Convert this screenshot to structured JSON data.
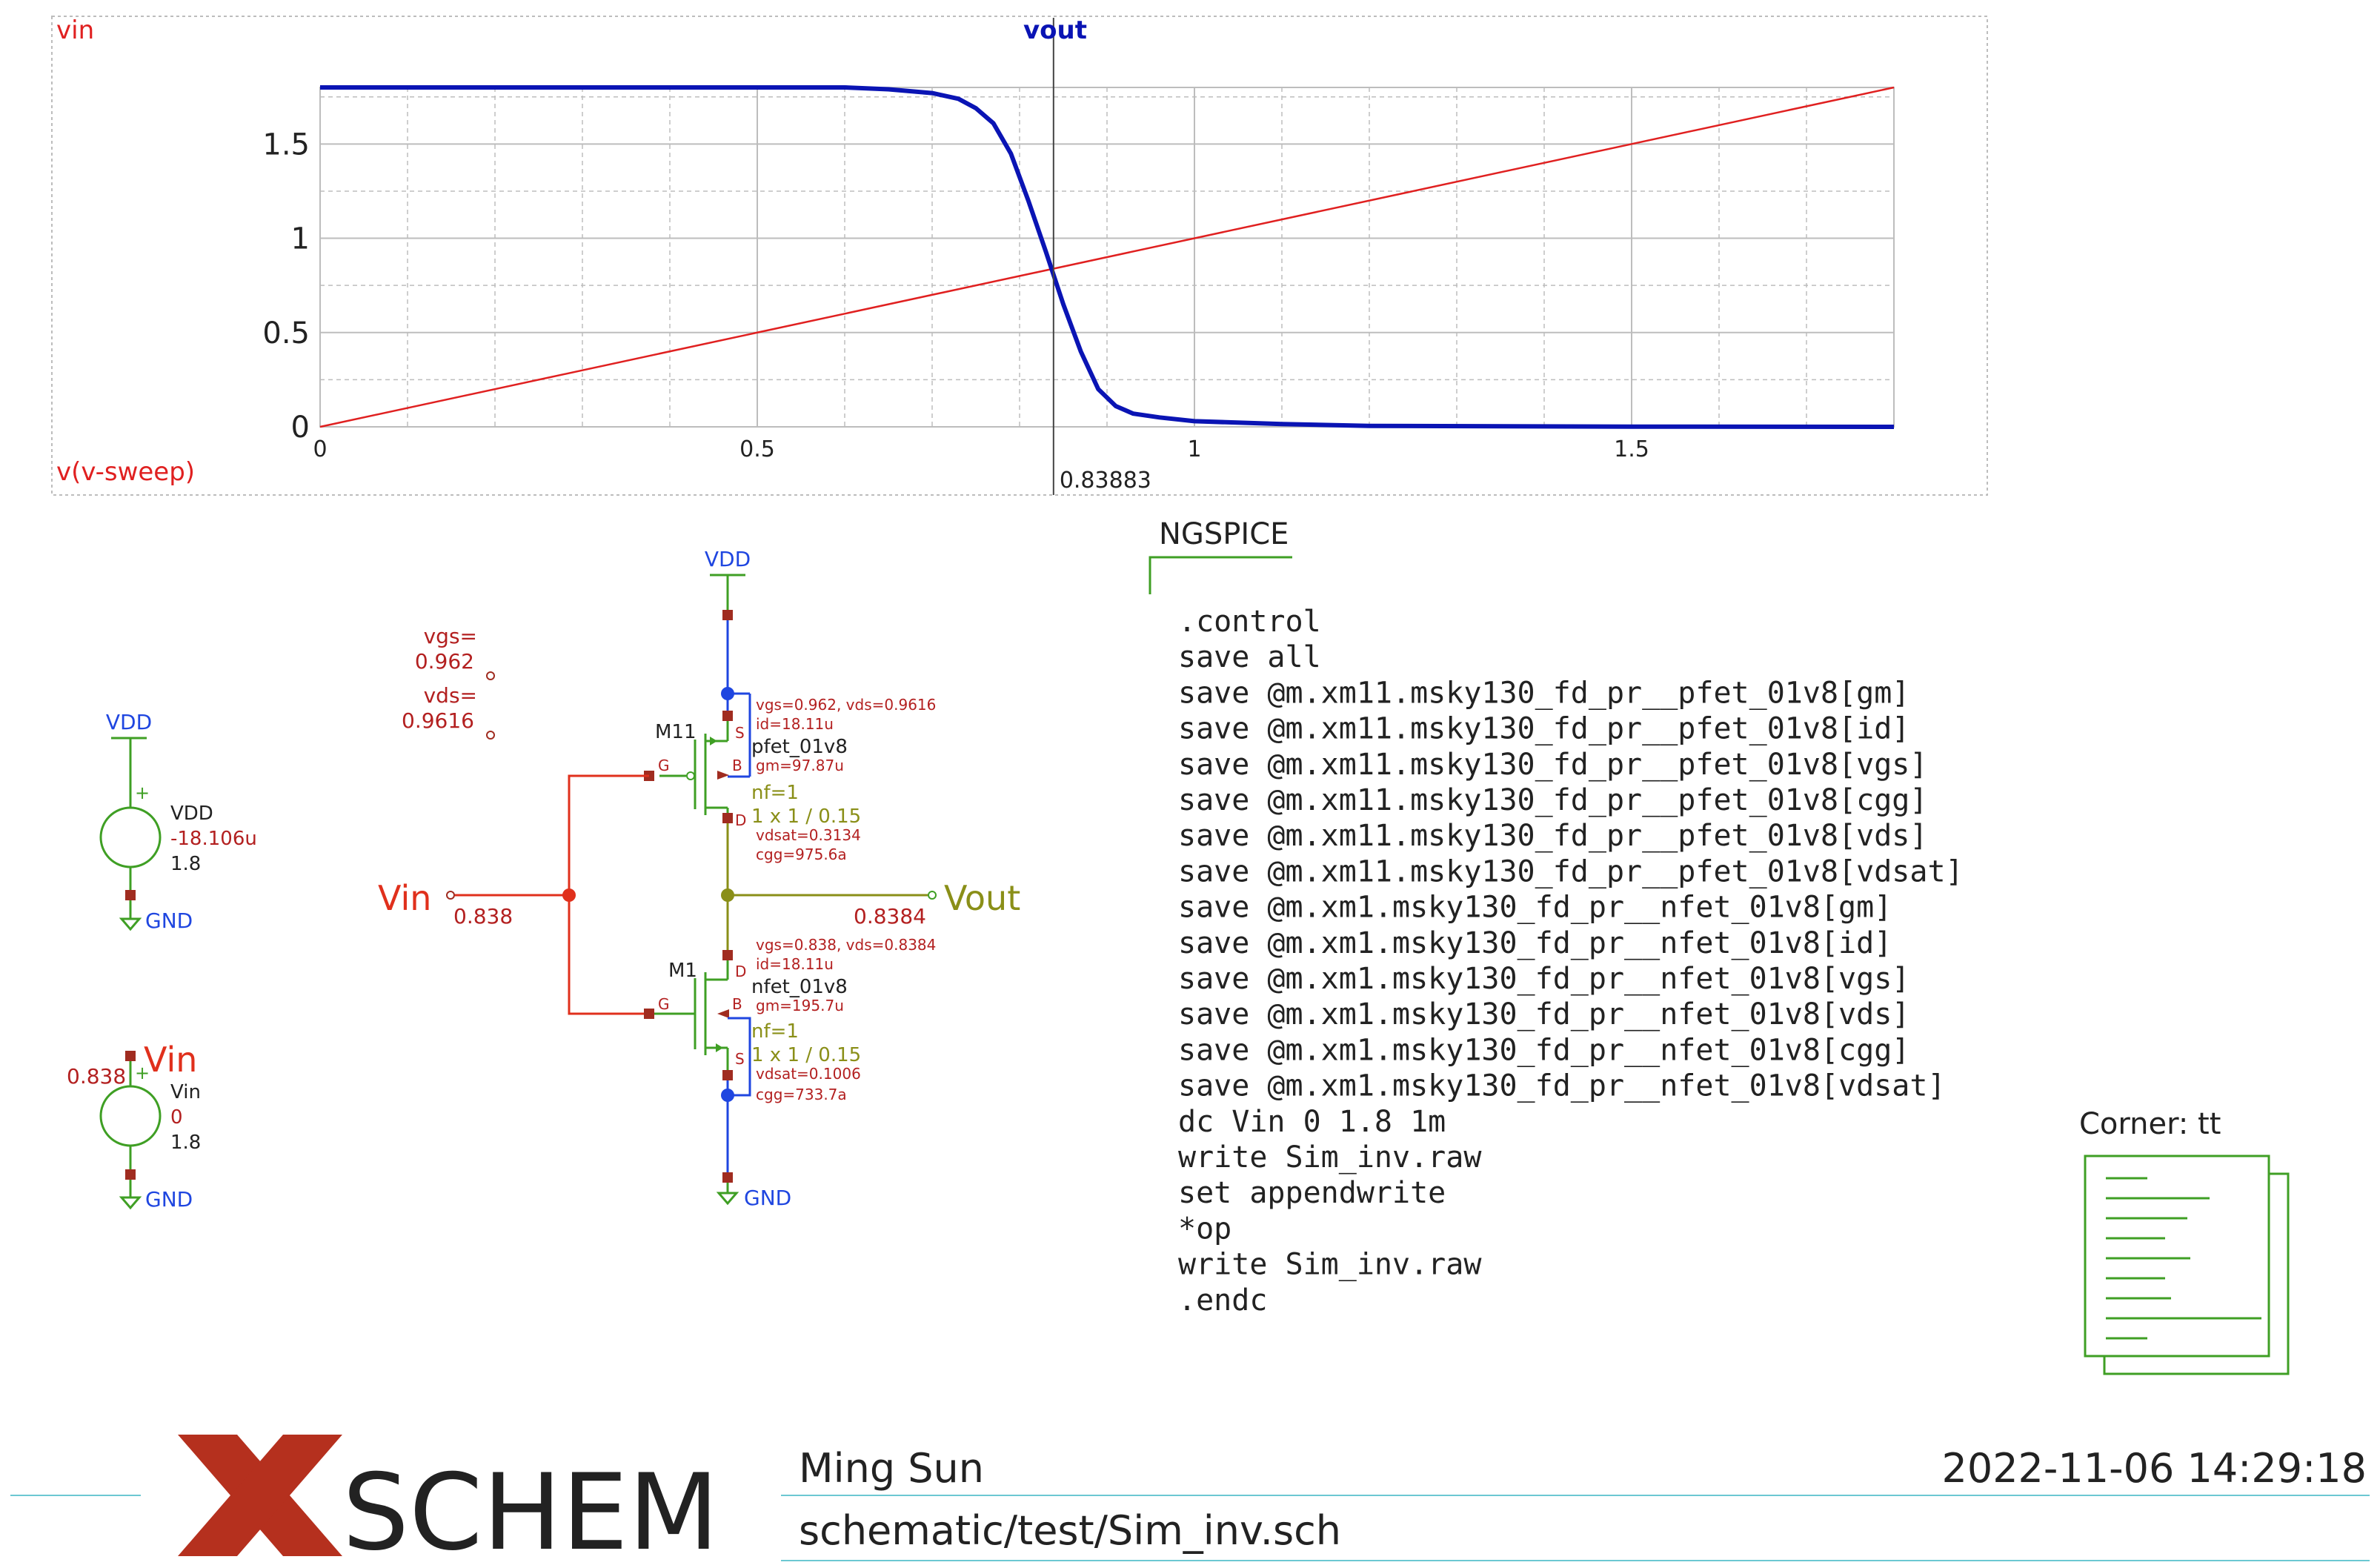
{
  "colors": {
    "background": "#ffffff",
    "grid": "#bdbdbd",
    "axis_text": "#222222",
    "vout": "#0a14b4",
    "vin_trace": "#e02020",
    "wire_green": "#3f9f24",
    "net_blue": "#1f46e0",
    "net_red": "#e0301c",
    "net_olive": "#8a8f18",
    "annot_red": "#b32020",
    "pin_dark": "#a02c20",
    "xschem_red": "#b5301e",
    "accent_line": "#6cc8d2"
  },
  "waveform": {
    "vin_label": "vin",
    "vout_label": "vout",
    "sweep_label": "v(v-sweep)",
    "cursor_value": "0.83883"
  },
  "chart_data": {
    "type": "line",
    "title": "",
    "xlabel": "v(v-sweep)",
    "ylabel": "",
    "xlim": [
      0,
      1.8
    ],
    "ylim": [
      0,
      1.8
    ],
    "xticks": [
      0,
      0.5,
      1,
      1.5
    ],
    "xtick_labels": [
      "0",
      "0.5",
      "1",
      "1.5"
    ],
    "yticks": [
      0,
      0.5,
      1,
      1.5
    ],
    "ytick_labels": [
      "0",
      "0.5",
      "1",
      "1.5"
    ],
    "grid": true,
    "cursor_x": 0.83883,
    "series": [
      {
        "name": "vin",
        "color": "#e02020",
        "x": [
          0,
          1.8
        ],
        "y": [
          0,
          1.8
        ]
      },
      {
        "name": "vout",
        "color": "#0a14b4",
        "x": [
          0,
          0.5,
          0.6,
          0.65,
          0.7,
          0.73,
          0.75,
          0.77,
          0.79,
          0.81,
          0.83,
          0.85,
          0.87,
          0.89,
          0.91,
          0.93,
          0.96,
          1.0,
          1.1,
          1.2,
          1.5,
          1.8
        ],
        "y": [
          1.8,
          1.8,
          1.8,
          1.79,
          1.77,
          1.74,
          1.69,
          1.61,
          1.45,
          1.2,
          0.93,
          0.65,
          0.4,
          0.2,
          0.11,
          0.07,
          0.05,
          0.03,
          0.015,
          0.005,
          0.001,
          0.0
        ]
      }
    ]
  },
  "schematic": {
    "vdd_net": "VDD",
    "gnd_net": "GND",
    "vin_net": "Vin",
    "vout_net": "Vout",
    "vin_value": "0.838",
    "vout_value": "0.8384",
    "probe_vgs_label": "vgs=",
    "probe_vgs_value": "0.962",
    "probe_vds_label": "vds=",
    "probe_vds_value": "0.9616",
    "vdd_source": {
      "name": "VDD",
      "current": "-18.106u",
      "value": "1.8",
      "plus": "+"
    },
    "vin_source": {
      "name": "Vin",
      "op_value": "0.838",
      "dc": "0",
      "value": "1.8",
      "plus": "+"
    },
    "pmos": {
      "name": "M11",
      "model": "pfet_01v8",
      "nf": "nf=1",
      "size": "1 x 1 / 0.15",
      "vgs_vds": "vgs=0.962, vds=0.9616",
      "id": "id=18.11u",
      "gm": "gm=97.87u",
      "vdsat": "vdsat=0.3134",
      "cgg": "cgg=975.6a",
      "pin_s": "S",
      "pin_b": "B",
      "pin_d": "D",
      "pin_g": "G"
    },
    "nmos": {
      "name": "M1",
      "model": "nfet_01v8",
      "nf": "nf=1",
      "size": "1 x 1 / 0.15",
      "vgs_vds": "vgs=0.838, vds=0.8384",
      "id": "id=18.11u",
      "gm": "gm=195.7u",
      "vdsat": "vdsat=0.1006",
      "cgg": "cgg=733.7a",
      "pin_s": "S",
      "pin_b": "B",
      "pin_d": "D",
      "pin_g": "G"
    }
  },
  "ngspice": {
    "title": "NGSPICE",
    "lines": [
      ".control",
      "save all",
      "save @m.xm11.msky130_fd_pr__pfet_01v8[gm]",
      "save @m.xm11.msky130_fd_pr__pfet_01v8[id]",
      "save @m.xm11.msky130_fd_pr__pfet_01v8[vgs]",
      "save @m.xm11.msky130_fd_pr__pfet_01v8[cgg]",
      "save @m.xm11.msky130_fd_pr__pfet_01v8[vds]",
      "save @m.xm11.msky130_fd_pr__pfet_01v8[vdsat]",
      "save @m.xm1.msky130_fd_pr__nfet_01v8[gm]",
      "save @m.xm1.msky130_fd_pr__nfet_01v8[id]",
      "save @m.xm1.msky130_fd_pr__nfet_01v8[vgs]",
      "save @m.xm1.msky130_fd_pr__nfet_01v8[vds]",
      "save @m.xm1.msky130_fd_pr__nfet_01v8[cgg]",
      "save @m.xm1.msky130_fd_pr__nfet_01v8[vdsat]",
      "dc Vin 0 1.8 1m",
      "write Sim_inv.raw",
      "set appendwrite",
      "*op",
      "write Sim_inv.raw",
      ".endc"
    ]
  },
  "corner": {
    "label": "Corner: tt",
    "icon": "document-stack-icon"
  },
  "titleblock": {
    "logo_text": "SCHEM",
    "author": "Ming Sun",
    "datetime": "2022-11-06  14:29:18",
    "path": "schematic/test/Sim_inv.sch"
  }
}
